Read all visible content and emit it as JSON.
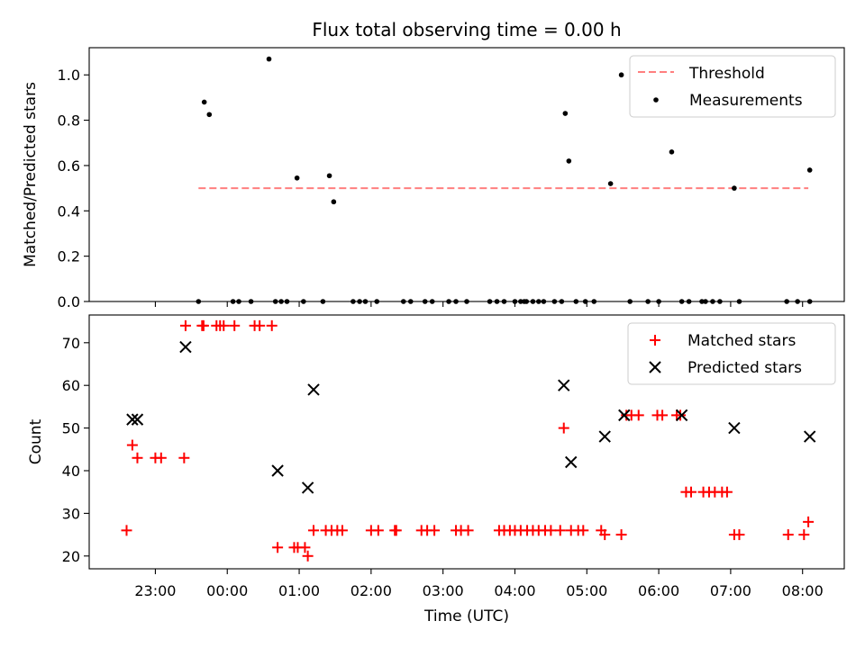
{
  "figure": {
    "title": "Flux total observing time = 0.00 h"
  },
  "chart_data": [
    {
      "type": "scatter",
      "ylabel": "Matched/Predicted stars",
      "ylim": [
        0,
        1.12
      ],
      "yticks": [
        0.0,
        0.2,
        0.4,
        0.6,
        0.8,
        1.0
      ],
      "ytick_labels": [
        "0.0",
        "0.2",
        "0.4",
        "0.6",
        "0.8",
        "1.0"
      ],
      "grid": false,
      "legend_position": "top-right",
      "series": [
        {
          "name": "Threshold",
          "kind": "line",
          "style": "dashed",
          "color": "#ff7f7f",
          "x": [
            -0.4,
            8.08
          ],
          "y": [
            0.5,
            0.5
          ]
        },
        {
          "name": "Measurements",
          "kind": "scatter",
          "marker": "dot",
          "color": "#000000",
          "x": [
            -0.4,
            -0.32,
            -0.25,
            0.08,
            0.16,
            0.33,
            0.58,
            0.67,
            0.75,
            0.83,
            0.97,
            1.06,
            1.33,
            1.42,
            1.48,
            1.75,
            1.84,
            1.92,
            2.08,
            2.45,
            2.55,
            2.75,
            2.85,
            3.08,
            3.18,
            3.33,
            3.65,
            3.75,
            3.85,
            4.0,
            4.08,
            4.13,
            4.16,
            4.25,
            4.33,
            4.4,
            4.55,
            4.65,
            4.7,
            4.75,
            4.85,
            4.98,
            5.1,
            5.33,
            5.48,
            5.6,
            5.85,
            6.0,
            6.18,
            6.32,
            6.42,
            6.6,
            6.65,
            6.75,
            6.85,
            7.05,
            7.12,
            7.78,
            7.93,
            8.1,
            8.1
          ],
          "y": [
            0,
            0.88,
            0.825,
            0,
            0,
            0,
            1.07,
            0,
            0,
            0,
            0.545,
            0,
            0,
            0.555,
            0.44,
            0,
            0,
            0,
            0,
            0,
            0,
            0,
            0,
            0,
            0,
            0,
            0,
            0,
            0,
            0,
            0,
            0,
            0,
            0,
            0,
            0,
            0,
            0,
            0.83,
            0.62,
            0,
            0,
            0,
            0.52,
            1.0,
            0,
            0,
            0,
            0.66,
            0,
            0,
            0,
            0,
            0,
            0,
            0.5,
            0,
            0,
            0,
            0.58,
            0
          ]
        }
      ]
    },
    {
      "type": "scatter",
      "xlabel": "Time (UTC)",
      "ylabel": "Count",
      "ylim": [
        17,
        76.5
      ],
      "yticks": [
        20,
        30,
        40,
        50,
        60,
        70
      ],
      "ytick_labels": [
        "20",
        "30",
        "40",
        "50",
        "60",
        "70"
      ],
      "xlim": [
        -1.92,
        8.58
      ],
      "xticks": [
        -1,
        0,
        1,
        2,
        3,
        4,
        5,
        6,
        7,
        8
      ],
      "xtick_labels": [
        "23:00",
        "00:00",
        "01:00",
        "02:00",
        "03:00",
        "04:00",
        "05:00",
        "06:00",
        "07:00",
        "08:00"
      ],
      "grid": false,
      "legend_position": "top-right",
      "series": [
        {
          "name": "Matched stars",
          "kind": "scatter",
          "marker": "plus",
          "color": "#ff0000",
          "x": [
            -1.4,
            -1.32,
            -1.25,
            -1.0,
            -0.92,
            -0.6,
            -0.58,
            -0.35,
            -0.33,
            -0.15,
            -0.1,
            -0.05,
            0.1,
            0.38,
            0.45,
            0.62,
            0.7,
            0.93,
            0.98,
            1.08,
            1.12,
            1.2,
            1.37,
            1.45,
            1.53,
            1.6,
            2.0,
            2.1,
            2.33,
            2.35,
            2.7,
            2.78,
            2.88,
            3.18,
            3.25,
            3.35,
            3.78,
            3.85,
            3.93,
            4.0,
            4.08,
            4.17,
            4.25,
            4.33,
            4.42,
            4.5,
            4.63,
            4.68,
            4.78,
            4.88,
            4.95,
            5.2,
            5.25,
            5.48,
            5.55,
            5.62,
            5.72,
            5.98,
            6.05,
            6.25,
            6.3,
            6.38,
            6.45,
            6.62,
            6.7,
            6.78,
            6.88,
            6.95,
            7.05,
            7.12,
            7.8,
            8.02,
            8.08
          ],
          "y": [
            26,
            46,
            43,
            43,
            43,
            43,
            74,
            74,
            74,
            74,
            74,
            74,
            74,
            74,
            74,
            74,
            22,
            22,
            22,
            22,
            20,
            26,
            26,
            26,
            26,
            26,
            26,
            26,
            26,
            26,
            26,
            26,
            26,
            26,
            26,
            26,
            26,
            26,
            26,
            26,
            26,
            26,
            26,
            26,
            26,
            26,
            26,
            50,
            26,
            26,
            26,
            26,
            25,
            25,
            53,
            53,
            53,
            53,
            53,
            53,
            53,
            35,
            35,
            35,
            35,
            35,
            35,
            35,
            25,
            25,
            25,
            25,
            28
          ]
        },
        {
          "name": "Predicted stars",
          "kind": "scatter",
          "marker": "x",
          "color": "#000000",
          "x": [
            -1.32,
            -1.25,
            -0.58,
            0.7,
            1.12,
            1.2,
            4.68,
            4.78,
            5.25,
            5.52,
            6.32,
            7.05,
            8.1
          ],
          "y": [
            52,
            52,
            69,
            40,
            36,
            59,
            60,
            42,
            48,
            53,
            53,
            50,
            48
          ]
        }
      ]
    }
  ]
}
